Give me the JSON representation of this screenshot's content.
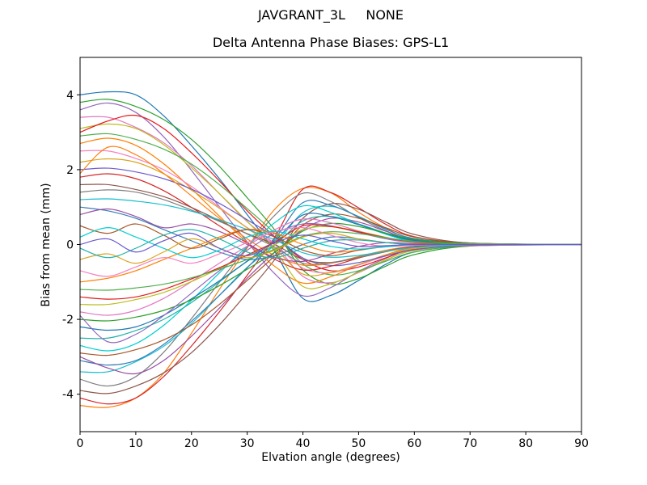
{
  "chart_data": {
    "type": "line",
    "suptitle": "JAVGRANT_3L     NONE",
    "title": "Delta Antenna Phase Biases: GPS-L1",
    "xlabel": "Elvation angle (degrees)",
    "ylabel": "Bias from mean (mm)",
    "xlim": [
      0,
      90
    ],
    "ylim": [
      -5,
      5
    ],
    "xticks": [
      0,
      10,
      20,
      30,
      40,
      50,
      60,
      70,
      80,
      90
    ],
    "yticks": [
      -4,
      -2,
      0,
      2,
      4
    ],
    "grid": false,
    "legend": "none",
    "axis_color": "#000000",
    "background": "#ffffff",
    "palette": [
      "#1f77b4",
      "#ff7f0e",
      "#2ca02c",
      "#d62728",
      "#9467bd",
      "#8c564b",
      "#e377c2",
      "#7f7f7f",
      "#bcbd22",
      "#17becf",
      "#e41a1c",
      "#377eb8",
      "#4daf4a",
      "#984ea3",
      "#ff7f00",
      "#a65628",
      "#f781bf",
      "#00ced1",
      "#daa520",
      "#20b2aa",
      "#6a5acd"
    ],
    "x": [
      0,
      5,
      10,
      15,
      20,
      25,
      30,
      35,
      40,
      45,
      50,
      55,
      60,
      70,
      90
    ],
    "series": [
      {
        "name": "line-01",
        "values": [
          4.0,
          4.08,
          4.0,
          3.44,
          2.64,
          1.76,
          0.8,
          -0.2,
          -1.44,
          -1.36,
          -0.96,
          -0.52,
          -0.2,
          -0.04,
          0.0
        ]
      },
      {
        "name": "line-02",
        "values": [
          -4.3,
          -4.35,
          -4.1,
          -3.44,
          -2.37,
          -1.2,
          -0.09,
          0.95,
          1.5,
          1.38,
          0.86,
          0.43,
          0.13,
          0.0,
          0.0
        ]
      },
      {
        "name": "line-03",
        "values": [
          3.8,
          3.88,
          3.69,
          3.34,
          2.81,
          2.09,
          1.25,
          0.38,
          -0.68,
          -1.06,
          -0.91,
          -0.57,
          -0.27,
          -0.04,
          0.0
        ]
      },
      {
        "name": "line-04",
        "values": [
          -4.1,
          -4.26,
          -4.1,
          -3.53,
          -2.71,
          -1.8,
          -0.82,
          0.21,
          1.48,
          1.39,
          0.98,
          0.53,
          0.21,
          0.04,
          0.0
        ]
      },
      {
        "name": "line-05",
        "values": [
          3.6,
          3.78,
          3.53,
          2.88,
          1.98,
          1.01,
          0.07,
          -0.79,
          -1.37,
          -1.15,
          -0.72,
          -0.36,
          -0.11,
          0.0,
          0.0
        ]
      },
      {
        "name": "line-06",
        "values": [
          -3.9,
          -3.98,
          -3.78,
          -3.43,
          -2.89,
          -2.15,
          -1.29,
          -0.39,
          0.7,
          1.09,
          0.94,
          0.59,
          0.27,
          0.04,
          0.0
        ]
      },
      {
        "name": "line-07",
        "values": [
          3.4,
          3.4,
          3.13,
          2.72,
          2.11,
          1.36,
          0.61,
          0.0,
          -0.85,
          -1.02,
          -0.75,
          -0.41,
          -0.14,
          -0.03,
          0.0
        ]
      },
      {
        "name": "line-08",
        "values": [
          -3.6,
          -3.78,
          -3.53,
          -2.88,
          -1.98,
          -1.01,
          -0.07,
          0.79,
          1.37,
          1.15,
          0.72,
          0.36,
          0.11,
          0.0,
          0.0
        ]
      },
      {
        "name": "line-09",
        "values": [
          3.1,
          3.22,
          3.1,
          2.67,
          2.05,
          1.36,
          0.62,
          -0.16,
          -1.12,
          -1.05,
          -0.74,
          -0.4,
          -0.16,
          -0.03,
          0.0
        ]
      },
      {
        "name": "line-10",
        "values": [
          -3.4,
          -3.4,
          -3.13,
          -2.72,
          -2.11,
          -1.36,
          -0.61,
          0.0,
          0.85,
          1.02,
          0.75,
          0.41,
          0.14,
          0.03,
          0.0
        ]
      },
      {
        "name": "line-11",
        "values": [
          3.0,
          3.3,
          3.45,
          3.1,
          2.45,
          1.7,
          0.9,
          0.2,
          -0.4,
          -0.7,
          -0.6,
          -0.35,
          -0.12,
          -0.02,
          0.0
        ]
      },
      {
        "name": "line-12",
        "values": [
          -3.1,
          -3.22,
          -3.1,
          -2.67,
          -2.05,
          -1.36,
          -0.62,
          0.16,
          1.12,
          1.05,
          0.74,
          0.4,
          0.16,
          0.03,
          0.0
        ]
      },
      {
        "name": "line-13",
        "values": [
          2.9,
          2.96,
          2.81,
          2.55,
          2.15,
          1.6,
          0.96,
          0.29,
          -0.52,
          -0.81,
          -0.7,
          -0.44,
          -0.2,
          -0.03,
          0.0
        ]
      },
      {
        "name": "line-14",
        "values": [
          -3.0,
          -3.3,
          -3.45,
          -3.1,
          -2.45,
          -1.7,
          -0.9,
          -0.2,
          0.4,
          0.7,
          0.6,
          0.35,
          0.12,
          0.02,
          0.0
        ]
      },
      {
        "name": "line-15",
        "values": [
          2.7,
          2.84,
          2.65,
          2.16,
          1.49,
          0.76,
          0.05,
          -0.59,
          -1.03,
          -0.86,
          -0.54,
          -0.27,
          -0.08,
          0.0,
          0.0
        ]
      },
      {
        "name": "line-16",
        "values": [
          -2.9,
          -2.96,
          -2.81,
          -2.55,
          -2.15,
          -1.6,
          -0.96,
          -0.29,
          0.52,
          0.81,
          0.7,
          0.44,
          0.2,
          0.03,
          0.0
        ]
      },
      {
        "name": "line-17",
        "values": [
          2.5,
          2.5,
          2.3,
          2.0,
          1.55,
          1.0,
          0.45,
          0.0,
          -0.63,
          -0.75,
          -0.55,
          -0.3,
          -0.1,
          -0.03,
          0.0
        ]
      },
      {
        "name": "line-18",
        "values": [
          -2.7,
          -2.84,
          -2.65,
          -2.16,
          -1.49,
          -0.76,
          -0.05,
          0.59,
          1.03,
          0.86,
          0.54,
          0.27,
          0.08,
          0.0,
          0.0
        ]
      },
      {
        "name": "line-19",
        "values": [
          2.2,
          2.29,
          2.2,
          1.89,
          1.45,
          0.97,
          0.44,
          -0.11,
          -0.79,
          -0.75,
          -0.53,
          -0.29,
          -0.11,
          -0.02,
          0.0
        ]
      },
      {
        "name": "line-20",
        "values": [
          -2.5,
          -2.5,
          -2.3,
          -2.0,
          -1.55,
          -1.0,
          -0.45,
          0.0,
          0.63,
          0.75,
          0.55,
          0.3,
          0.1,
          0.03,
          0.0
        ]
      },
      {
        "name": "line-21",
        "values": [
          2.0,
          2.04,
          1.94,
          1.76,
          1.48,
          1.1,
          0.66,
          0.2,
          -0.36,
          -0.56,
          -0.48,
          -0.3,
          -0.14,
          -0.02,
          0.0
        ]
      },
      {
        "name": "line-22",
        "values": [
          -2.2,
          -2.29,
          -2.2,
          -1.89,
          -1.45,
          -0.97,
          -0.44,
          0.11,
          0.79,
          0.75,
          0.53,
          0.29,
          0.11,
          0.02,
          0.0
        ]
      },
      {
        "name": "line-23",
        "values": [
          1.9,
          2.6,
          2.4,
          1.9,
          1.3,
          0.7,
          0.15,
          -0.3,
          -0.55,
          -0.5,
          -0.32,
          -0.15,
          -0.05,
          0.0,
          0.0
        ]
      },
      {
        "name": "line-24",
        "values": [
          -2.0,
          -2.04,
          -1.94,
          -1.76,
          -1.48,
          -1.1,
          -0.66,
          -0.2,
          0.36,
          0.56,
          0.48,
          0.3,
          0.14,
          0.02,
          0.0
        ]
      },
      {
        "name": "line-25",
        "values": [
          1.8,
          1.89,
          1.76,
          1.44,
          0.99,
          0.5,
          0.04,
          -0.4,
          -0.68,
          -0.58,
          -0.36,
          -0.18,
          -0.05,
          0.0,
          0.0
        ]
      },
      {
        "name": "line-26",
        "values": [
          -1.9,
          -2.6,
          -2.4,
          -1.9,
          -1.3,
          -0.7,
          -0.15,
          0.3,
          0.55,
          0.5,
          0.32,
          0.15,
          0.05,
          0.0,
          0.0
        ]
      },
      {
        "name": "line-27",
        "values": [
          1.6,
          1.6,
          1.47,
          1.28,
          0.99,
          0.64,
          0.29,
          0.0,
          -0.4,
          -0.48,
          -0.35,
          -0.19,
          -0.06,
          -0.02,
          0.0
        ]
      },
      {
        "name": "line-28",
        "values": [
          -1.8,
          -1.89,
          -1.76,
          -1.44,
          -0.99,
          -0.5,
          -0.04,
          0.4,
          0.68,
          0.58,
          0.36,
          0.18,
          0.05,
          0.0,
          0.0
        ]
      },
      {
        "name": "line-29",
        "values": [
          1.4,
          1.46,
          1.4,
          1.2,
          0.92,
          0.62,
          0.28,
          -0.07,
          -0.5,
          -0.48,
          -0.34,
          -0.18,
          -0.07,
          -0.01,
          0.0
        ]
      },
      {
        "name": "line-30",
        "values": [
          -1.6,
          -1.6,
          -1.47,
          -1.28,
          -0.99,
          -0.64,
          -0.29,
          0.0,
          0.4,
          0.48,
          0.35,
          0.19,
          0.06,
          0.02,
          0.0
        ]
      },
      {
        "name": "line-31",
        "values": [
          1.2,
          1.22,
          1.16,
          1.06,
          0.89,
          0.66,
          0.4,
          0.12,
          -0.22,
          -0.34,
          -0.29,
          -0.18,
          -0.08,
          -0.01,
          0.0
        ]
      },
      {
        "name": "line-32",
        "values": [
          -1.4,
          -1.46,
          -1.4,
          -1.2,
          -0.92,
          -0.62,
          -0.28,
          0.07,
          0.5,
          0.48,
          0.34,
          0.18,
          0.07,
          0.01,
          0.0
        ]
      },
      {
        "name": "line-33",
        "values": [
          1.0,
          0.9,
          0.7,
          0.4,
          0.1,
          -0.2,
          -0.4,
          -0.3,
          0.0,
          0.2,
          0.15,
          0.05,
          0.0,
          0.0,
          0.0
        ]
      },
      {
        "name": "line-34",
        "values": [
          -1.2,
          -1.22,
          -1.16,
          -1.06,
          -0.89,
          -0.66,
          -0.4,
          -0.12,
          0.22,
          0.34,
          0.29,
          0.18,
          0.08,
          0.01,
          0.0
        ]
      },
      {
        "name": "line-35",
        "values": [
          0.8,
          0.95,
          0.75,
          0.45,
          0.55,
          0.35,
          0.0,
          -0.35,
          -0.45,
          -0.25,
          -0.05,
          0.05,
          0.02,
          0.0,
          0.0
        ]
      },
      {
        "name": "line-36",
        "values": [
          -1.0,
          -0.9,
          -0.7,
          -0.4,
          -0.1,
          0.2,
          0.4,
          0.3,
          0.0,
          -0.2,
          -0.15,
          -0.05,
          0.0,
          0.0,
          0.0
        ]
      },
      {
        "name": "line-37",
        "values": [
          0.5,
          0.3,
          0.55,
          0.25,
          -0.1,
          0.15,
          0.4,
          0.2,
          -0.15,
          -0.3,
          -0.15,
          -0.05,
          0.0,
          0.0,
          0.0
        ]
      },
      {
        "name": "line-38",
        "values": [
          -0.7,
          -0.85,
          -0.6,
          -0.35,
          -0.5,
          -0.25,
          0.05,
          0.35,
          0.45,
          0.25,
          0.05,
          -0.05,
          -0.02,
          0.0,
          0.0
        ]
      },
      {
        "name": "line-39",
        "values": [
          0.2,
          0.45,
          0.2,
          -0.1,
          -0.35,
          -0.15,
          0.2,
          0.35,
          0.15,
          -0.05,
          -0.12,
          -0.06,
          0.0,
          0.0,
          0.0
        ]
      },
      {
        "name": "line-40",
        "values": [
          -0.4,
          -0.25,
          -0.5,
          -0.2,
          0.15,
          -0.1,
          -0.35,
          -0.15,
          0.2,
          0.3,
          0.15,
          0.05,
          0.0,
          0.0,
          0.0
        ]
      },
      {
        "name": "line-41",
        "values": [
          -0.1,
          -0.35,
          -0.1,
          0.25,
          0.4,
          0.15,
          -0.2,
          -0.35,
          -0.1,
          0.1,
          0.12,
          0.05,
          0.0,
          0.0,
          0.0
        ]
      },
      {
        "name": "line-42",
        "values": [
          0.0,
          0.15,
          -0.2,
          0.1,
          0.3,
          -0.1,
          -0.3,
          0.05,
          0.25,
          0.1,
          -0.05,
          -0.03,
          0.0,
          0.0,
          0.0
        ]
      }
    ]
  }
}
